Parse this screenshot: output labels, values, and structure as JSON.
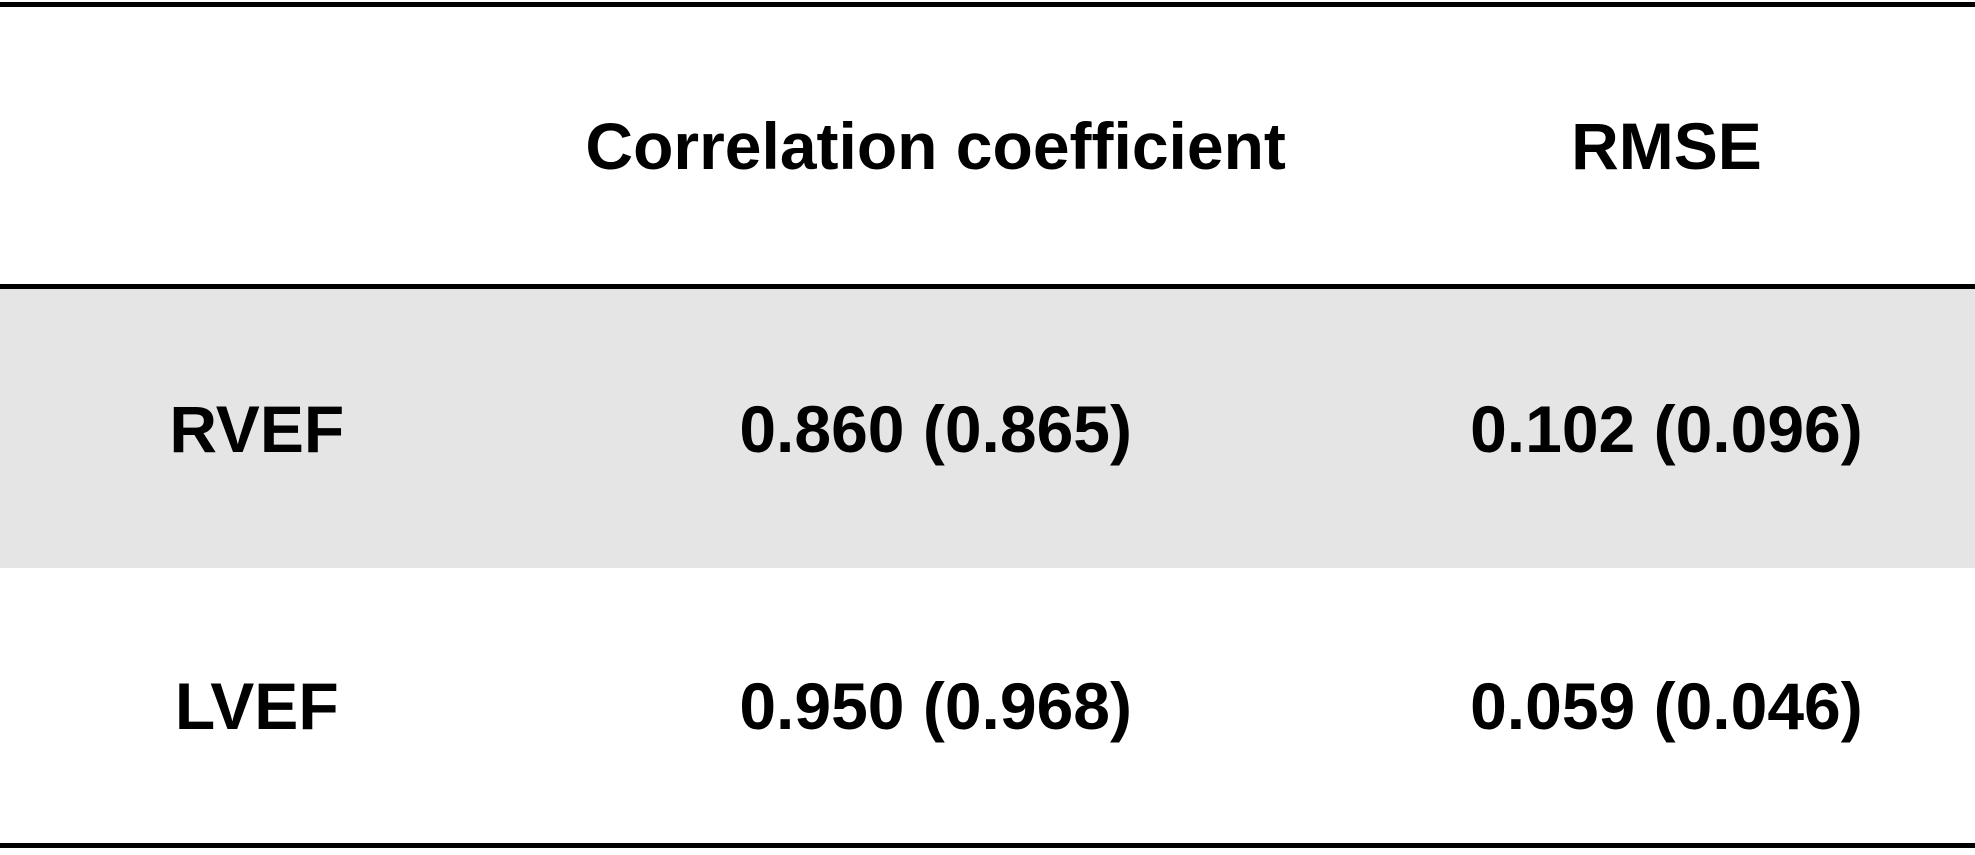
{
  "table": {
    "header": {
      "row_label": "",
      "correlation": "Correlation coefficient",
      "rmse": "RMSE"
    },
    "rows": [
      {
        "label": "RVEF",
        "correlation": "0.860 (0.865)",
        "rmse": "0.102 (0.096)"
      },
      {
        "label": "LVEF",
        "correlation": "0.950 (0.968)",
        "rmse": "0.059 (0.046)"
      }
    ]
  },
  "colors": {
    "highlight_row_bg": "#e6e5e5",
    "rule": "#000000",
    "background": "#ffffff",
    "text": "#000000"
  },
  "chart_data": {
    "type": "table",
    "columns": [
      "",
      "Correlation coefficient",
      "RMSE"
    ],
    "rows": [
      [
        "RVEF",
        "0.860 (0.865)",
        "0.102 (0.096)"
      ],
      [
        "LVEF",
        "0.950 (0.968)",
        "0.059 (0.046)"
      ]
    ]
  }
}
